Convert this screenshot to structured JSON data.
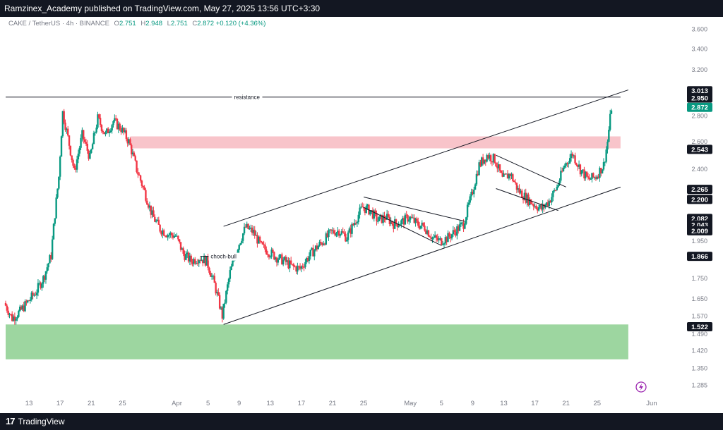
{
  "header": {
    "publisher_text": "Ramzinex_Academy published on TradingView.com, May 27, 2025 13:56 UTC+3:30"
  },
  "symbol": {
    "name": "CAKE / TetherUS · 4h · BINANCE",
    "open_label": "O",
    "open": "2.751",
    "high_label": "H",
    "high": "2.948",
    "low_label": "L",
    "low": "2.751",
    "close_label": "C",
    "close": "2.872",
    "change": "+0.120 (+4.36%)"
  },
  "footer": {
    "brand": "TradingView",
    "logo_text": "17"
  },
  "colors": {
    "up": "#089981",
    "down": "#f23645",
    "bg": "#ffffff",
    "topbar": "#131722",
    "supply_zone": "#f8c4ca",
    "demand_zone": "#9dd6a0"
  },
  "chart_data": {
    "type": "candlestick",
    "title": "",
    "y_scale": "log",
    "ylim": [
      1.25,
      3.7
    ],
    "y_ticks": [
      {
        "value": 3.6,
        "label": "3.600"
      },
      {
        "value": 3.4,
        "label": "3.400"
      },
      {
        "value": 3.2,
        "label": "3.200"
      },
      {
        "value": 2.8,
        "label": "2.800"
      },
      {
        "value": 2.6,
        "label": "2.600"
      },
      {
        "value": 2.4,
        "label": "2.400"
      },
      {
        "value": 1.95,
        "label": "1.950"
      },
      {
        "value": 1.75,
        "label": "1.750"
      },
      {
        "value": 1.65,
        "label": "1.650"
      },
      {
        "value": 1.57,
        "label": "1.570"
      },
      {
        "value": 1.49,
        "label": "1.490"
      },
      {
        "value": 1.42,
        "label": "1.420"
      },
      {
        "value": 1.35,
        "label": "1.350"
      },
      {
        "value": 1.285,
        "label": "1.285"
      }
    ],
    "x_ticks": [
      {
        "date": "2025-03-13",
        "label": "13"
      },
      {
        "date": "2025-03-17",
        "label": "17"
      },
      {
        "date": "2025-03-21",
        "label": "21"
      },
      {
        "date": "2025-03-25",
        "label": "25"
      },
      {
        "date": "2025-04-01",
        "label": "Apr"
      },
      {
        "date": "2025-04-05",
        "label": "5"
      },
      {
        "date": "2025-04-09",
        "label": "9"
      },
      {
        "date": "2025-04-13",
        "label": "13"
      },
      {
        "date": "2025-04-17",
        "label": "17"
      },
      {
        "date": "2025-04-21",
        "label": "21"
      },
      {
        "date": "2025-04-25",
        "label": "25"
      },
      {
        "date": "2025-05-01",
        "label": "May"
      },
      {
        "date": "2025-05-05",
        "label": "5"
      },
      {
        "date": "2025-05-09",
        "label": "9"
      },
      {
        "date": "2025-05-13",
        "label": "13"
      },
      {
        "date": "2025-05-17",
        "label": "17"
      },
      {
        "date": "2025-05-21",
        "label": "21"
      },
      {
        "date": "2025-05-25",
        "label": "25"
      },
      {
        "date": "2025-06-01",
        "label": "Jun"
      }
    ],
    "price_badges": [
      {
        "value": 3.013,
        "label": "3.013",
        "style": "dark"
      },
      {
        "value": 2.95,
        "label": "2.950",
        "style": "dark"
      },
      {
        "value": 2.872,
        "label": "2.872",
        "style": "green"
      },
      {
        "value": 2.543,
        "label": "2.543",
        "style": "dark"
      },
      {
        "value": 2.265,
        "label": "2.265",
        "style": "dark"
      },
      {
        "value": 2.2,
        "label": "2.200",
        "style": "dark"
      },
      {
        "value": 2.082,
        "label": "2.082",
        "style": "dark"
      },
      {
        "value": 2.043,
        "label": "2.043",
        "style": "dark"
      },
      {
        "value": 2.009,
        "label": "2.009",
        "style": "dark"
      },
      {
        "value": 1.866,
        "label": "1.866",
        "style": "dark"
      },
      {
        "value": 1.522,
        "label": "1.522",
        "style": "dark"
      }
    ],
    "zones": [
      {
        "name": "supply",
        "from": "2025-03-26",
        "to": "2025-05-28",
        "y_low": 2.55,
        "y_high": 2.64,
        "color": "#f8c4ca"
      },
      {
        "name": "demand",
        "from": "2025-03-10",
        "to": "2025-05-29",
        "y_low": 1.385,
        "y_high": 1.532,
        "color": "#9dd6a0"
      }
    ],
    "lines": [
      {
        "name": "resistance-line",
        "x1": "2025-03-10",
        "y1": 2.958,
        "x2": "2025-05-28",
        "y2": 2.958
      },
      {
        "name": "channel-upper",
        "x1": "2025-04-07",
        "y1": 2.035,
        "x2": "2025-05-29",
        "y2": 3.02
      },
      {
        "name": "channel-lower",
        "x1": "2025-04-07",
        "y1": 1.532,
        "x2": "2025-05-28",
        "y2": 2.28
      },
      {
        "name": "triangle-upper",
        "x1": "2025-04-25",
        "y1": 2.215,
        "x2": "2025-05-08",
        "y2": 2.065
      },
      {
        "name": "triangle-lower",
        "x1": "2025-04-25",
        "y1": 2.15,
        "x2": "2025-05-05",
        "y2": 1.925
      },
      {
        "name": "wedge-upper",
        "x1": "2025-05-12",
        "y1": 2.5,
        "x2": "2025-05-21",
        "y2": 2.28
      },
      {
        "name": "wedge-lower",
        "x1": "2025-05-12",
        "y1": 2.27,
        "x2": "2025-05-20",
        "y2": 2.13
      },
      {
        "name": "choch-line",
        "x1": "2025-04-04",
        "y1": 1.866,
        "x2": "2025-04-07",
        "y2": 1.866
      }
    ],
    "annotations": [
      {
        "name": "resistance-label",
        "text": "resistance",
        "date": "2025-04-10",
        "y": 2.958
      },
      {
        "name": "choch-label",
        "text": "choch-bull",
        "date": "2025-04-07",
        "y": 1.866
      }
    ],
    "anchors": [
      {
        "date": "2025-03-10",
        "price": 1.63
      },
      {
        "date": "2025-03-11",
        "price": 1.56
      },
      {
        "date": "2025-03-12",
        "price": 1.59
      },
      {
        "date": "2025-03-14",
        "price": 1.68
      },
      {
        "date": "2025-03-15",
        "price": 1.75
      },
      {
        "date": "2025-03-16",
        "price": 1.87
      },
      {
        "date": "2025-03-17",
        "price": 2.35
      },
      {
        "date": "2025-03-17T12:00",
        "price": 2.83
      },
      {
        "date": "2025-03-18",
        "price": 2.68
      },
      {
        "date": "2025-03-19",
        "price": 2.38
      },
      {
        "date": "2025-03-20",
        "price": 2.65
      },
      {
        "date": "2025-03-21",
        "price": 2.48
      },
      {
        "date": "2025-03-22",
        "price": 2.78
      },
      {
        "date": "2025-03-23",
        "price": 2.65
      },
      {
        "date": "2025-03-24",
        "price": 2.76
      },
      {
        "date": "2025-03-25",
        "price": 2.7
      },
      {
        "date": "2025-03-26",
        "price": 2.6
      },
      {
        "date": "2025-03-27",
        "price": 2.4
      },
      {
        "date": "2025-03-28",
        "price": 2.25
      },
      {
        "date": "2025-03-29",
        "price": 2.1
      },
      {
        "date": "2025-03-30",
        "price": 2.02
      },
      {
        "date": "2025-03-31",
        "price": 1.99
      },
      {
        "date": "2025-04-01",
        "price": 1.98
      },
      {
        "date": "2025-04-02",
        "price": 1.88
      },
      {
        "date": "2025-04-03",
        "price": 1.84
      },
      {
        "date": "2025-04-04",
        "price": 1.86
      },
      {
        "date": "2025-04-05",
        "price": 1.84
      },
      {
        "date": "2025-04-06",
        "price": 1.72
      },
      {
        "date": "2025-04-07",
        "price": 1.57
      },
      {
        "date": "2025-04-08",
        "price": 1.78
      },
      {
        "date": "2025-04-09",
        "price": 1.92
      },
      {
        "date": "2025-04-10",
        "price": 2.03
      },
      {
        "date": "2025-04-11",
        "price": 2.0
      },
      {
        "date": "2025-04-12",
        "price": 1.92
      },
      {
        "date": "2025-04-13",
        "price": 1.89
      },
      {
        "date": "2025-04-14",
        "price": 1.86
      },
      {
        "date": "2025-04-15",
        "price": 1.84
      },
      {
        "date": "2025-04-16",
        "price": 1.81
      },
      {
        "date": "2025-04-17",
        "price": 1.8
      },
      {
        "date": "2025-04-18",
        "price": 1.86
      },
      {
        "date": "2025-04-19",
        "price": 1.91
      },
      {
        "date": "2025-04-20",
        "price": 1.95
      },
      {
        "date": "2025-04-21",
        "price": 2.0
      },
      {
        "date": "2025-04-22",
        "price": 2.01
      },
      {
        "date": "2025-04-23",
        "price": 1.97
      },
      {
        "date": "2025-04-24",
        "price": 2.06
      },
      {
        "date": "2025-04-25",
        "price": 2.15
      },
      {
        "date": "2025-04-26",
        "price": 2.13
      },
      {
        "date": "2025-04-27",
        "price": 2.07
      },
      {
        "date": "2025-04-28",
        "price": 2.09
      },
      {
        "date": "2025-04-29",
        "price": 2.05
      },
      {
        "date": "2025-04-30",
        "price": 2.06
      },
      {
        "date": "2025-05-01",
        "price": 2.09
      },
      {
        "date": "2025-05-02",
        "price": 2.05
      },
      {
        "date": "2025-05-03",
        "price": 2.03
      },
      {
        "date": "2025-05-04",
        "price": 1.97
      },
      {
        "date": "2025-05-05",
        "price": 1.95
      },
      {
        "date": "2025-05-06",
        "price": 1.97
      },
      {
        "date": "2025-05-07",
        "price": 2.01
      },
      {
        "date": "2025-05-08",
        "price": 2.05
      },
      {
        "date": "2025-05-09",
        "price": 2.22
      },
      {
        "date": "2025-05-10",
        "price": 2.43
      },
      {
        "date": "2025-05-11",
        "price": 2.5
      },
      {
        "date": "2025-05-12",
        "price": 2.47
      },
      {
        "date": "2025-05-13",
        "price": 2.33
      },
      {
        "date": "2025-05-14",
        "price": 2.37
      },
      {
        "date": "2025-05-15",
        "price": 2.26
      },
      {
        "date": "2025-05-16",
        "price": 2.21
      },
      {
        "date": "2025-05-17",
        "price": 2.17
      },
      {
        "date": "2025-05-18",
        "price": 2.14
      },
      {
        "date": "2025-05-19",
        "price": 2.19
      },
      {
        "date": "2025-05-20",
        "price": 2.28
      },
      {
        "date": "2025-05-21",
        "price": 2.43
      },
      {
        "date": "2025-05-22",
        "price": 2.51
      },
      {
        "date": "2025-05-23",
        "price": 2.4
      },
      {
        "date": "2025-05-24",
        "price": 2.33
      },
      {
        "date": "2025-05-25",
        "price": 2.35
      },
      {
        "date": "2025-05-26",
        "price": 2.43
      },
      {
        "date": "2025-05-26T12:00",
        "price": 2.6
      },
      {
        "date": "2025-05-27",
        "price": 2.872
      }
    ]
  }
}
